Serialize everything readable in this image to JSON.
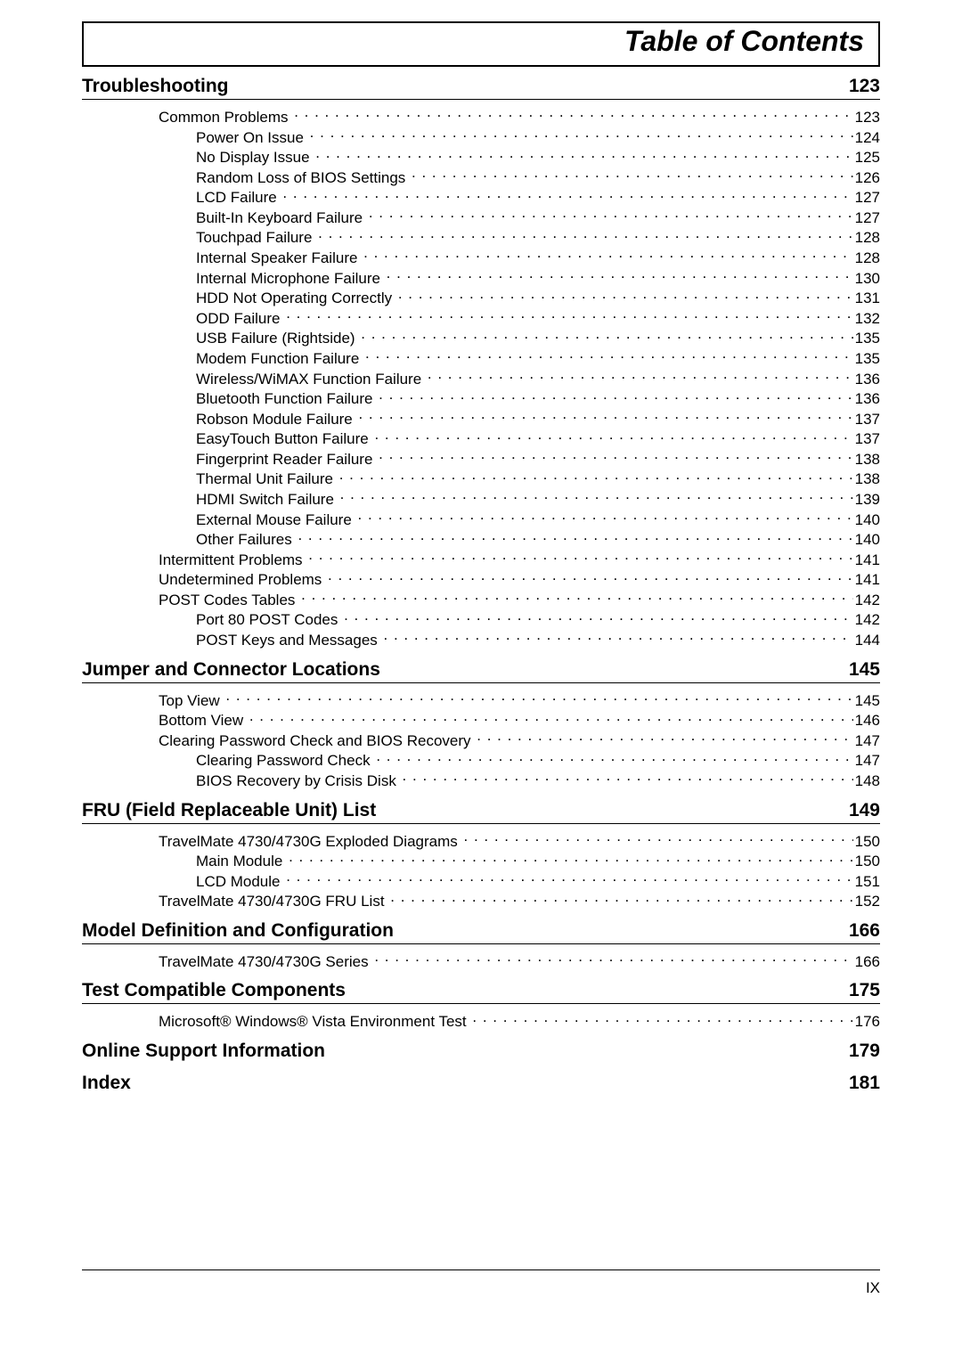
{
  "title": "Table of Contents",
  "page_number": "IX",
  "typography": {
    "title_fontsize_pt": 24,
    "section_fontsize_pt": 16,
    "entry_fontsize_pt": 13,
    "font_family": "Arial"
  },
  "colors": {
    "text": "#000000",
    "background": "#ffffff",
    "rule": "#000000"
  },
  "sections": [
    {
      "heading": "Troubleshooting",
      "page": "123",
      "entries": [
        {
          "indent": 1,
          "label": "Common Problems",
          "page": "123"
        },
        {
          "indent": 2,
          "label": "Power On Issue",
          "page": "124"
        },
        {
          "indent": 2,
          "label": "No Display Issue",
          "page": "125"
        },
        {
          "indent": 2,
          "label": "Random Loss of BIOS Settings",
          "page": "126"
        },
        {
          "indent": 2,
          "label": "LCD Failure",
          "page": "127"
        },
        {
          "indent": 2,
          "label": "Built-In Keyboard Failure",
          "page": "127"
        },
        {
          "indent": 2,
          "label": "Touchpad Failure",
          "page": "128"
        },
        {
          "indent": 2,
          "label": "Internal Speaker Failure",
          "page": "128"
        },
        {
          "indent": 2,
          "label": "Internal Microphone Failure",
          "page": "130"
        },
        {
          "indent": 2,
          "label": "HDD Not Operating Correctly",
          "page": "131"
        },
        {
          "indent": 2,
          "label": "ODD Failure",
          "page": "132"
        },
        {
          "indent": 2,
          "label": "USB Failure (Rightside)",
          "page": "135"
        },
        {
          "indent": 2,
          "label": "Modem Function Failure",
          "page": "135"
        },
        {
          "indent": 2,
          "label": "Wireless/WiMAX Function Failure",
          "page": "136"
        },
        {
          "indent": 2,
          "label": "Bluetooth Function Failure",
          "page": "136"
        },
        {
          "indent": 2,
          "label": "Robson Module Failure",
          "page": "137"
        },
        {
          "indent": 2,
          "label": "EasyTouch Button Failure",
          "page": "137"
        },
        {
          "indent": 2,
          "label": "Fingerprint Reader Failure",
          "page": "138"
        },
        {
          "indent": 2,
          "label": "Thermal Unit Failure",
          "page": "138"
        },
        {
          "indent": 2,
          "label": "HDMI Switch Failure",
          "page": "139"
        },
        {
          "indent": 2,
          "label": "External Mouse Failure",
          "page": "140"
        },
        {
          "indent": 2,
          "label": "Other Failures",
          "page": "140"
        },
        {
          "indent": 1,
          "label": "Intermittent Problems",
          "page": "141"
        },
        {
          "indent": 1,
          "label": "Undetermined Problems",
          "page": "141"
        },
        {
          "indent": 1,
          "label": "POST Codes Tables",
          "page": "142"
        },
        {
          "indent": 2,
          "label": "Port 80 POST Codes",
          "page": "142"
        },
        {
          "indent": 2,
          "label": "POST Keys and Messages",
          "page": "144"
        }
      ]
    },
    {
      "heading": "Jumper and Connector Locations",
      "page": "145",
      "entries": [
        {
          "indent": 1,
          "label": "Top View",
          "page": "145"
        },
        {
          "indent": 1,
          "label": "Bottom View",
          "page": "146"
        },
        {
          "indent": 1,
          "label": "Clearing Password Check and BIOS Recovery",
          "page": "147"
        },
        {
          "indent": 2,
          "label": "Clearing Password Check",
          "page": "147"
        },
        {
          "indent": 2,
          "label": "BIOS Recovery by Crisis Disk",
          "page": "148"
        }
      ]
    },
    {
      "heading": "FRU (Field Replaceable Unit) List",
      "page": "149",
      "entries": [
        {
          "indent": 1,
          "label": "TravelMate 4730/4730G Exploded Diagrams",
          "page": "150"
        },
        {
          "indent": 2,
          "label": "Main Module",
          "page": "150"
        },
        {
          "indent": 2,
          "label": "LCD Module",
          "page": "151"
        },
        {
          "indent": 1,
          "label": "TravelMate 4730/4730G FRU List",
          "page": "152"
        }
      ]
    },
    {
      "heading": "Model Definition and Configuration",
      "page": "166",
      "entries": [
        {
          "indent": 1,
          "label": "TravelMate 4730/4730G Series",
          "page": "166"
        }
      ]
    },
    {
      "heading": "Test Compatible Components",
      "page": "175",
      "entries": [
        {
          "indent": 1,
          "label": "Microsoft® Windows® Vista Environment Test",
          "page": "176"
        }
      ]
    },
    {
      "heading": "Online Support Information",
      "page": "179",
      "entries": []
    },
    {
      "heading": "Index",
      "page": "181",
      "entries": []
    }
  ]
}
